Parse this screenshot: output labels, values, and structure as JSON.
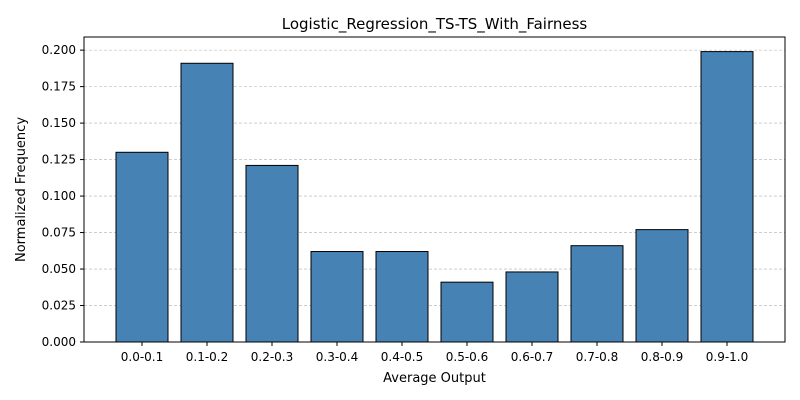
{
  "chart_data": {
    "type": "bar",
    "title": "Logistic_Regression_TS-TS_With_Fairness",
    "xlabel": "Average Output",
    "ylabel": "Normalized Frequency",
    "categories": [
      "0.0-0.1",
      "0.1-0.2",
      "0.2-0.3",
      "0.3-0.4",
      "0.4-0.5",
      "0.5-0.6",
      "0.6-0.7",
      "0.7-0.8",
      "0.8-0.9",
      "0.9-1.0"
    ],
    "values": [
      0.13,
      0.191,
      0.121,
      0.062,
      0.062,
      0.041,
      0.048,
      0.066,
      0.077,
      0.199
    ],
    "ylim": [
      0,
      0.209
    ],
    "yticks": [
      "0.000",
      "0.025",
      "0.050",
      "0.075",
      "0.100",
      "0.125",
      "0.150",
      "0.175",
      "0.200"
    ],
    "grid": "y-dashed",
    "bar_color": "#4682b4",
    "edge_color": "#000000"
  }
}
